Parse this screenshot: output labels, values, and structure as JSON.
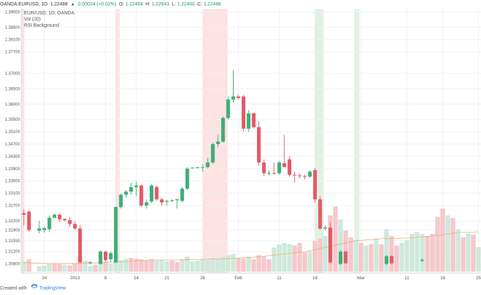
{
  "header": {
    "symbol": "OANDA:EURUSD, 1D",
    "last": "1.22488",
    "arrow": "▲",
    "change": "0.00024 (+0.02%)",
    "open_label": "O:",
    "open": "1.22464",
    "high_label": "H:",
    "high": "1.22643",
    "low_label": "L:",
    "low": "1.22400",
    "close_label": "C:",
    "close": "1.22488"
  },
  "legend": {
    "title": "EUR/USD, 1D, OANDA",
    "volume": "Vol (20)",
    "rsi": "RSI Background"
  },
  "footer": {
    "created_with": "Created with",
    "brand": "TradingView"
  },
  "colors": {
    "up": "#3fae76",
    "down": "#e35a66",
    "vol_up": "#cfe9dc",
    "vol_down": "#f6c8cc",
    "shade_red": "#fde3e3",
    "shade_green": "#e1f1e3",
    "ma": "#f0a868",
    "grid": "#eef0f3"
  },
  "chart_data": {
    "type": "candlestick",
    "title": "EUR/USD, 1D, OANDA",
    "ylim": [
      1.3068,
      1.3901
    ],
    "y_ticks": [
      "1.39000",
      "1.38500",
      "1.38100",
      "1.37700",
      "1.37000",
      "1.36500",
      "1.36000",
      "1.35500",
      "1.35100",
      "1.34700",
      "1.34300",
      "1.33900",
      "1.33500",
      "1.33100",
      "1.32700",
      "1.32200",
      "1.31900",
      "1.31550",
      "1.31200",
      "1.30800"
    ],
    "x_ticks": [
      {
        "i": 4,
        "label": "24"
      },
      {
        "i": 10,
        "label": "2013"
      },
      {
        "i": 16,
        "label": "8"
      },
      {
        "i": 22,
        "label": "14"
      },
      {
        "i": 28,
        "label": "21"
      },
      {
        "i": 35,
        "label": "26"
      },
      {
        "i": 42,
        "label": "Feb"
      },
      {
        "i": 50,
        "label": "11"
      },
      {
        "i": 57,
        "label": "18"
      },
      {
        "i": 66,
        "label": "Mar"
      },
      {
        "i": 75,
        "label": "11"
      },
      {
        "i": 82,
        "label": "18"
      },
      {
        "i": 89,
        "label": "25"
      }
    ],
    "num_slots": 90,
    "candles": [
      {
        "i": 0,
        "o": 1.3245,
        "h": 1.3258,
        "l": 1.3205,
        "c": 1.324
      },
      {
        "i": 1,
        "o": 1.325,
        "h": 1.3255,
        "l": 1.3185,
        "c": 1.319
      },
      {
        "i": 3,
        "o": 1.3188,
        "h": 1.322,
        "l": 1.318,
        "c": 1.3195
      },
      {
        "i": 4,
        "o": 1.319,
        "h": 1.32,
        "l": 1.3182,
        "c": 1.3196
      },
      {
        "i": 5,
        "o": 1.3193,
        "h": 1.3238,
        "l": 1.3185,
        "c": 1.323
      },
      {
        "i": 6,
        "o": 1.323,
        "h": 1.3245,
        "l": 1.323,
        "c": 1.324
      },
      {
        "i": 7,
        "o": 1.324,
        "h": 1.3245,
        "l": 1.3215,
        "c": 1.3225
      },
      {
        "i": 8,
        "o": 1.3226,
        "h": 1.3228,
        "l": 1.3218,
        "c": 1.3222
      },
      {
        "i": 9,
        "o": 1.3222,
        "h": 1.3232,
        "l": 1.32,
        "c": 1.321
      },
      {
        "i": 10,
        "o": 1.321,
        "h": 1.3218,
        "l": 1.319,
        "c": 1.3195
      },
      {
        "i": 11,
        "o": 1.3195,
        "h": 1.3205,
        "l": 1.308,
        "c": 1.3085
      },
      {
        "i": 13,
        "o": 1.3082,
        "h": 1.309,
        "l": 1.3078,
        "c": 1.3085
      },
      {
        "i": 15,
        "o": 1.308,
        "h": 1.3125,
        "l": 1.3078,
        "c": 1.312
      },
      {
        "i": 16,
        "o": 1.312,
        "h": 1.3122,
        "l": 1.3088,
        "c": 1.3092
      },
      {
        "i": 17,
        "o": 1.3095,
        "h": 1.312,
        "l": 1.3085,
        "c": 1.3115
      },
      {
        "i": 18,
        "o": 1.3085,
        "h": 1.3268,
        "l": 1.3082,
        "c": 1.3265
      },
      {
        "i": 19,
        "o": 1.3265,
        "h": 1.331,
        "l": 1.326,
        "c": 1.3305
      },
      {
        "i": 20,
        "o": 1.3305,
        "h": 1.332,
        "l": 1.3295,
        "c": 1.3315
      },
      {
        "i": 21,
        "o": 1.3315,
        "h": 1.3345,
        "l": 1.3305,
        "c": 1.333
      },
      {
        "i": 22,
        "o": 1.333,
        "h": 1.3348,
        "l": 1.33,
        "c": 1.3335
      },
      {
        "i": 23,
        "o": 1.3335,
        "h": 1.3338,
        "l": 1.3265,
        "c": 1.327
      },
      {
        "i": 24,
        "o": 1.327,
        "h": 1.329,
        "l": 1.326,
        "c": 1.328
      },
      {
        "i": 25,
        "o": 1.3283,
        "h": 1.334,
        "l": 1.3278,
        "c": 1.3335
      },
      {
        "i": 26,
        "o": 1.333,
        "h": 1.3335,
        "l": 1.3285,
        "c": 1.329
      },
      {
        "i": 27,
        "o": 1.329,
        "h": 1.3295,
        "l": 1.327,
        "c": 1.328
      },
      {
        "i": 28,
        "o": 1.3282,
        "h": 1.3288,
        "l": 1.327,
        "c": 1.3285
      },
      {
        "i": 29,
        "o": 1.3285,
        "h": 1.329,
        "l": 1.328,
        "c": 1.3287
      },
      {
        "i": 30,
        "o": 1.3287,
        "h": 1.3292,
        "l": 1.326,
        "c": 1.329
      },
      {
        "i": 31,
        "o": 1.3285,
        "h": 1.333,
        "l": 1.328,
        "c": 1.3325
      },
      {
        "i": 32,
        "o": 1.3325,
        "h": 1.3395,
        "l": 1.332,
        "c": 1.339
      },
      {
        "i": 33,
        "o": 1.3393,
        "h": 1.3395,
        "l": 1.3391,
        "c": 1.3393
      },
      {
        "i": 34,
        "o": 1.3393,
        "h": 1.3396,
        "l": 1.3391,
        "c": 1.3394
      },
      {
        "i": 35,
        "o": 1.3394,
        "h": 1.3405,
        "l": 1.338,
        "c": 1.3395
      },
      {
        "i": 36,
        "o": 1.3395,
        "h": 1.3425,
        "l": 1.339,
        "c": 1.341
      },
      {
        "i": 37,
        "o": 1.341,
        "h": 1.3475,
        "l": 1.3405,
        "c": 1.347
      },
      {
        "i": 38,
        "o": 1.347,
        "h": 1.35,
        "l": 1.346,
        "c": 1.3478
      },
      {
        "i": 39,
        "o": 1.3478,
        "h": 1.356,
        "l": 1.3475,
        "c": 1.3555
      },
      {
        "i": 40,
        "o": 1.3555,
        "h": 1.3625,
        "l": 1.355,
        "c": 1.3615
      },
      {
        "i": 41,
        "o": 1.3615,
        "h": 1.371,
        "l": 1.3605,
        "c": 1.3625
      },
      {
        "i": 42,
        "o": 1.3625,
        "h": 1.3632,
        "l": 1.3615,
        "c": 1.362
      },
      {
        "i": 43,
        "o": 1.3625,
        "h": 1.363,
        "l": 1.351,
        "c": 1.352
      },
      {
        "i": 44,
        "o": 1.352,
        "h": 1.358,
        "l": 1.351,
        "c": 1.357
      },
      {
        "i": 45,
        "o": 1.357,
        "h": 1.3572,
        "l": 1.352,
        "c": 1.3525
      },
      {
        "i": 46,
        "o": 1.3525,
        "h": 1.3545,
        "l": 1.34,
        "c": 1.341
      },
      {
        "i": 47,
        "o": 1.341,
        "h": 1.342,
        "l": 1.3365,
        "c": 1.3375
      },
      {
        "i": 48,
        "o": 1.3375,
        "h": 1.3385,
        "l": 1.3368,
        "c": 1.3376
      },
      {
        "i": 49,
        "o": 1.3376,
        "h": 1.341,
        "l": 1.337,
        "c": 1.3375
      },
      {
        "i": 50,
        "o": 1.3375,
        "h": 1.3415,
        "l": 1.337,
        "c": 1.341
      },
      {
        "i": 51,
        "o": 1.3408,
        "h": 1.35,
        "l": 1.34,
        "c": 1.3395
      },
      {
        "i": 52,
        "o": 1.342,
        "h": 1.343,
        "l": 1.3365,
        "c": 1.337
      },
      {
        "i": 53,
        "o": 1.337,
        "h": 1.338,
        "l": 1.3345,
        "c": 1.3368
      },
      {
        "i": 54,
        "o": 1.3368,
        "h": 1.3375,
        "l": 1.3358,
        "c": 1.3366
      },
      {
        "i": 55,
        "o": 1.3366,
        "h": 1.337,
        "l": 1.3355,
        "c": 1.3364
      },
      {
        "i": 56,
        "o": 1.3364,
        "h": 1.3385,
        "l": 1.336,
        "c": 1.338
      },
      {
        "i": 57,
        "o": 1.3385,
        "h": 1.3392,
        "l": 1.328,
        "c": 1.329
      },
      {
        "i": 58,
        "o": 1.329,
        "h": 1.33,
        "l": 1.319,
        "c": 1.3195
      },
      {
        "i": 59,
        "o": 1.3195,
        "h": 1.3205,
        "l": 1.3188,
        "c": 1.3198
      },
      {
        "i": 60,
        "o": 1.3198,
        "h": 1.3215,
        "l": 1.308,
        "c": 1.3085
      },
      {
        "i": 62,
        "o": 1.308,
        "h": 1.3125,
        "l": 1.3076,
        "c": 1.312
      },
      {
        "i": 63,
        "o": 1.312,
        "h": 1.3122,
        "l": 1.308,
        "c": 1.3082
      },
      {
        "i": 71,
        "o": 1.308,
        "h": 1.3108,
        "l": 1.3076,
        "c": 1.3105
      },
      {
        "i": 72,
        "o": 1.3105,
        "h": 1.3108,
        "l": 1.3078,
        "c": 1.3082
      },
      {
        "i": 78,
        "o": 1.309,
        "h": 1.3098,
        "l": 1.3086,
        "c": 1.3093
      }
    ],
    "volumes": [
      {
        "i": 0,
        "v": 15,
        "up": true
      },
      {
        "i": 1,
        "v": 18,
        "up": false
      },
      {
        "i": 3,
        "v": 8,
        "up": true
      },
      {
        "i": 4,
        "v": 9,
        "up": true
      },
      {
        "i": 5,
        "v": 11,
        "up": true
      },
      {
        "i": 6,
        "v": 12,
        "up": false
      },
      {
        "i": 7,
        "v": 11,
        "up": false
      },
      {
        "i": 8,
        "v": 10,
        "up": true
      },
      {
        "i": 9,
        "v": 9,
        "up": false
      },
      {
        "i": 10,
        "v": 12,
        "up": false
      },
      {
        "i": 11,
        "v": 20,
        "up": false
      },
      {
        "i": 12,
        "v": 16,
        "up": true
      },
      {
        "i": 13,
        "v": 8,
        "up": true
      },
      {
        "i": 14,
        "v": 10,
        "up": false
      },
      {
        "i": 15,
        "v": 14,
        "up": true
      },
      {
        "i": 16,
        "v": 15,
        "up": false
      },
      {
        "i": 17,
        "v": 12,
        "up": true
      },
      {
        "i": 18,
        "v": 18,
        "up": true
      },
      {
        "i": 19,
        "v": 17,
        "up": true
      },
      {
        "i": 20,
        "v": 19,
        "up": true
      },
      {
        "i": 21,
        "v": 20,
        "up": false
      },
      {
        "i": 22,
        "v": 19,
        "up": false
      },
      {
        "i": 23,
        "v": 18,
        "up": false
      },
      {
        "i": 24,
        "v": 17,
        "up": false
      },
      {
        "i": 25,
        "v": 18,
        "up": false
      },
      {
        "i": 26,
        "v": 16,
        "up": true
      },
      {
        "i": 27,
        "v": 17,
        "up": true
      },
      {
        "i": 28,
        "v": 15,
        "up": true
      },
      {
        "i": 29,
        "v": 16,
        "up": false
      },
      {
        "i": 30,
        "v": 14,
        "up": false
      },
      {
        "i": 31,
        "v": 18,
        "up": true
      },
      {
        "i": 32,
        "v": 22,
        "up": true
      },
      {
        "i": 33,
        "v": 15,
        "up": true
      },
      {
        "i": 34,
        "v": 16,
        "up": true
      },
      {
        "i": 35,
        "v": 18,
        "up": true
      },
      {
        "i": 36,
        "v": 17,
        "up": true
      },
      {
        "i": 37,
        "v": 20,
        "up": true
      },
      {
        "i": 38,
        "v": 18,
        "up": true
      },
      {
        "i": 39,
        "v": 22,
        "up": true
      },
      {
        "i": 40,
        "v": 24,
        "up": true
      },
      {
        "i": 41,
        "v": 26,
        "up": true
      },
      {
        "i": 42,
        "v": 20,
        "up": false
      },
      {
        "i": 43,
        "v": 19,
        "up": false
      },
      {
        "i": 44,
        "v": 22,
        "up": true
      },
      {
        "i": 45,
        "v": 18,
        "up": false
      },
      {
        "i": 46,
        "v": 24,
        "up": false
      },
      {
        "i": 47,
        "v": 22,
        "up": false
      },
      {
        "i": 48,
        "v": 18,
        "up": false
      },
      {
        "i": 49,
        "v": 35,
        "up": true
      },
      {
        "i": 50,
        "v": 40,
        "up": true
      },
      {
        "i": 51,
        "v": 42,
        "up": true
      },
      {
        "i": 52,
        "v": 40,
        "up": true
      },
      {
        "i": 53,
        "v": 38,
        "up": false
      },
      {
        "i": 54,
        "v": 42,
        "up": false
      },
      {
        "i": 55,
        "v": 28,
        "up": false
      },
      {
        "i": 56,
        "v": 30,
        "up": true
      },
      {
        "i": 57,
        "v": 45,
        "up": false
      },
      {
        "i": 58,
        "v": 48,
        "up": false
      },
      {
        "i": 59,
        "v": 52,
        "up": true
      },
      {
        "i": 60,
        "v": 82,
        "up": false
      },
      {
        "i": 61,
        "v": 95,
        "up": false
      },
      {
        "i": 62,
        "v": 76,
        "up": true
      },
      {
        "i": 63,
        "v": 60,
        "up": false
      },
      {
        "i": 64,
        "v": 50,
        "up": false
      },
      {
        "i": 65,
        "v": 46,
        "up": true
      },
      {
        "i": 66,
        "v": 42,
        "up": false
      },
      {
        "i": 67,
        "v": 38,
        "up": true
      },
      {
        "i": 68,
        "v": 40,
        "up": false
      },
      {
        "i": 69,
        "v": 48,
        "up": true
      },
      {
        "i": 70,
        "v": 40,
        "up": false
      },
      {
        "i": 71,
        "v": 62,
        "up": true
      },
      {
        "i": 72,
        "v": 52,
        "up": false
      },
      {
        "i": 73,
        "v": 38,
        "up": false
      },
      {
        "i": 74,
        "v": 42,
        "up": true
      },
      {
        "i": 75,
        "v": 46,
        "up": true
      },
      {
        "i": 76,
        "v": 55,
        "up": true
      },
      {
        "i": 77,
        "v": 58,
        "up": true
      },
      {
        "i": 78,
        "v": 55,
        "up": true
      },
      {
        "i": 79,
        "v": 52,
        "up": false
      },
      {
        "i": 80,
        "v": 55,
        "up": false
      },
      {
        "i": 81,
        "v": 80,
        "up": false
      },
      {
        "i": 82,
        "v": 92,
        "up": false
      },
      {
        "i": 83,
        "v": 82,
        "up": true
      },
      {
        "i": 84,
        "v": 78,
        "up": false
      },
      {
        "i": 85,
        "v": 62,
        "up": true
      },
      {
        "i": 86,
        "v": 50,
        "up": false
      },
      {
        "i": 87,
        "v": 56,
        "up": true
      },
      {
        "i": 88,
        "v": 54,
        "up": false
      },
      {
        "i": 89,
        "v": 36,
        "up": true
      }
    ],
    "volume_ma": [
      [
        0,
        13
      ],
      [
        5,
        12
      ],
      [
        10,
        12
      ],
      [
        15,
        13
      ],
      [
        20,
        15
      ],
      [
        25,
        17
      ],
      [
        30,
        17
      ],
      [
        35,
        18
      ],
      [
        40,
        19
      ],
      [
        45,
        21
      ],
      [
        50,
        25
      ],
      [
        55,
        29
      ],
      [
        60,
        37
      ],
      [
        65,
        45
      ],
      [
        70,
        48
      ],
      [
        75,
        49
      ],
      [
        80,
        52
      ],
      [
        85,
        57
      ],
      [
        89,
        58
      ]
    ],
    "volume_max": 120,
    "rsi_bands": [
      {
        "from": 0,
        "to": 0.6,
        "kind": "red"
      },
      {
        "from": 18.4,
        "to": 19.3,
        "kind": "red"
      },
      {
        "from": 35.6,
        "to": 40.4,
        "kind": "red"
      },
      {
        "from": 57.4,
        "to": 59.2,
        "kind": "green"
      },
      {
        "from": 65.2,
        "to": 66.2,
        "kind": "green"
      }
    ]
  }
}
